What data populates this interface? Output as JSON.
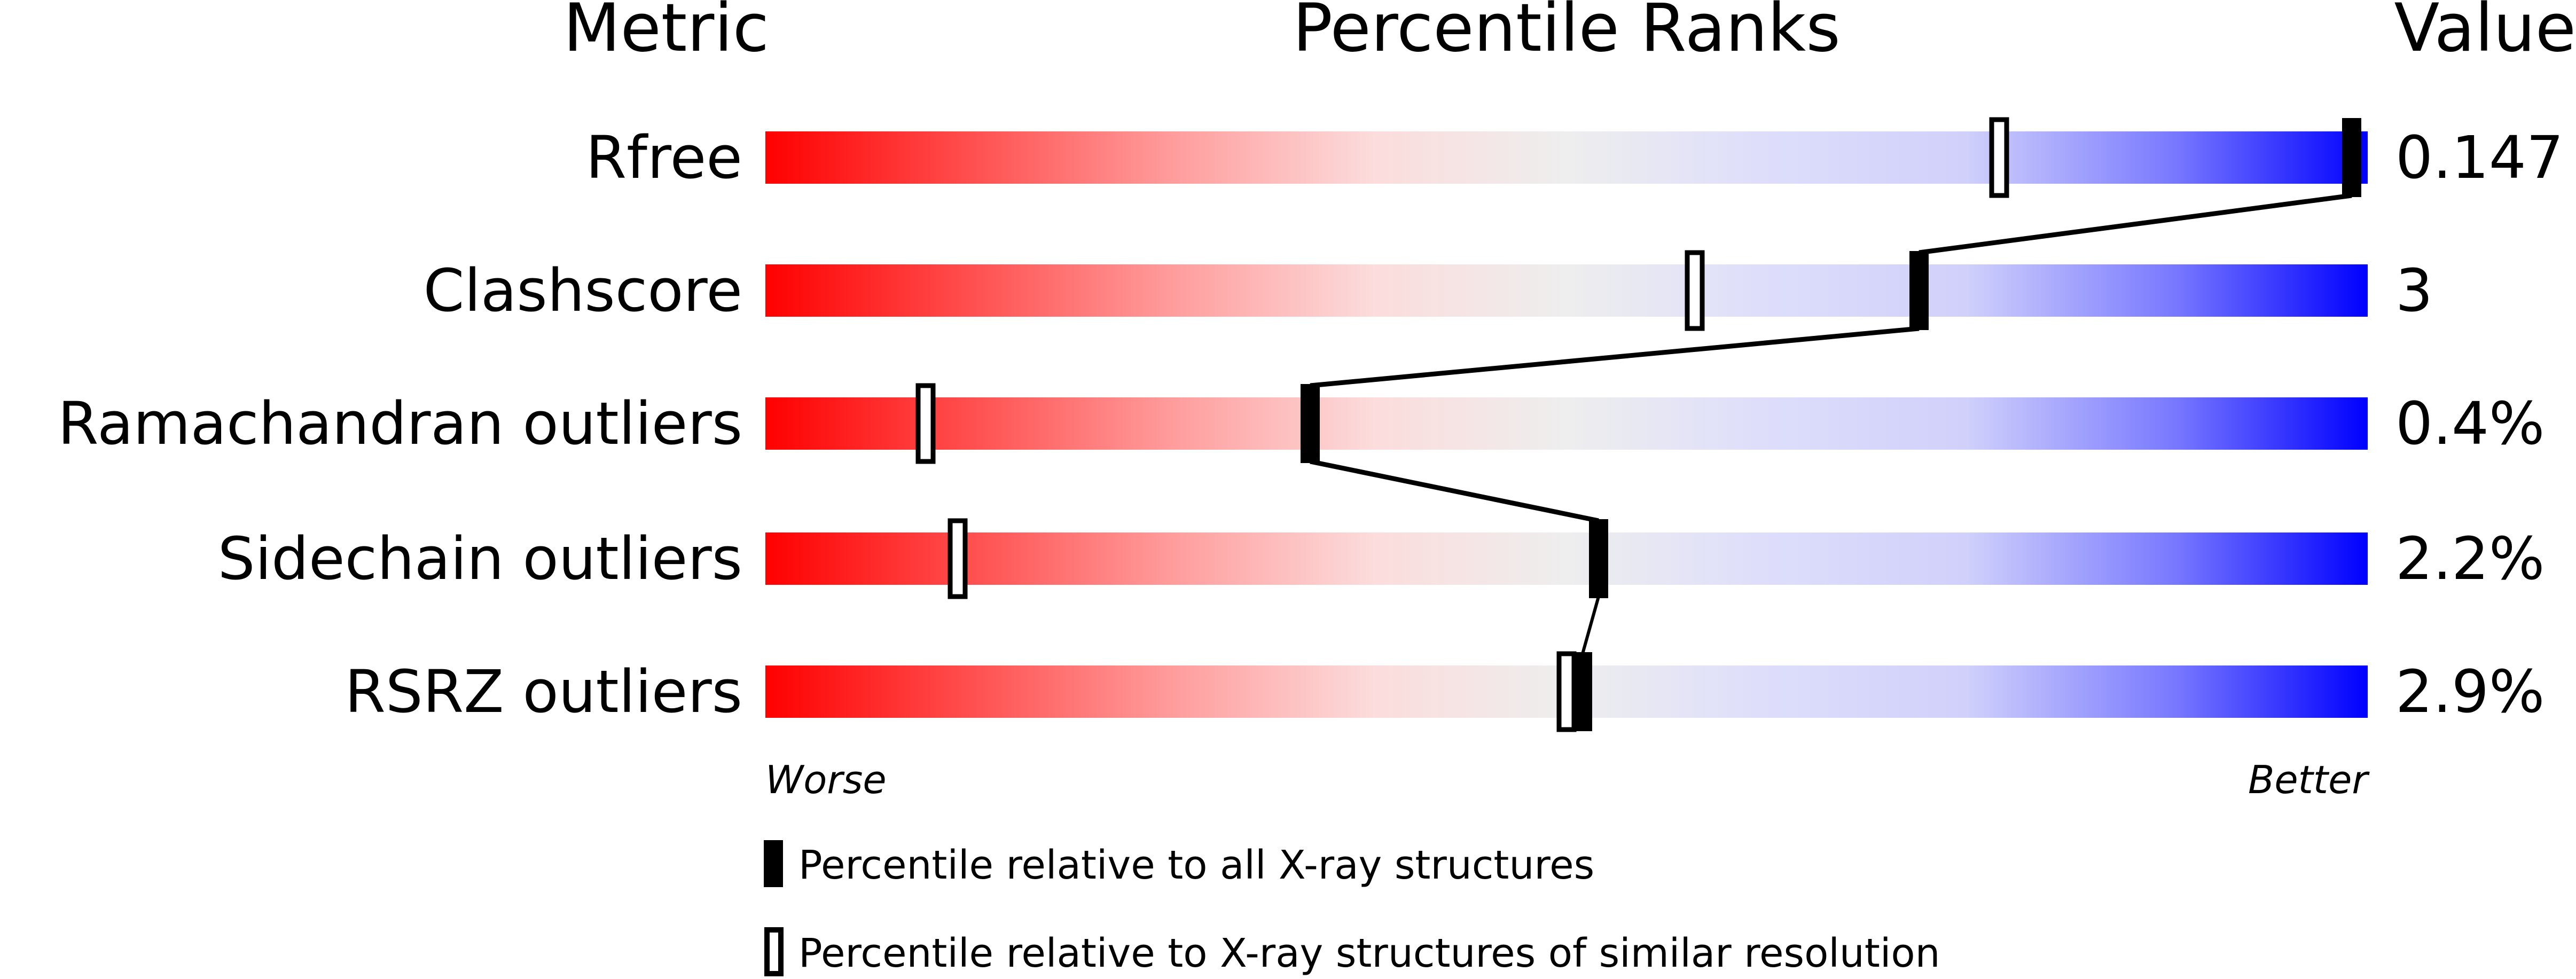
{
  "chart_data": {
    "type": "percentile-bar",
    "headers": {
      "metric": "Metric",
      "ranks": "Percentile Ranks",
      "value": "Value"
    },
    "xlim": [
      0,
      100
    ],
    "axis_labels": {
      "left": "Worse",
      "right": "Better"
    },
    "gradient_colors": [
      "#ff0000",
      "#eeeeee",
      "#0000ff"
    ],
    "metrics": [
      {
        "label": "Rfree",
        "value": "0.147",
        "percentile_all": 99,
        "percentile_similar": 77
      },
      {
        "label": "Clashscore",
        "value": "3",
        "percentile_all": 72,
        "percentile_similar": 58
      },
      {
        "label": "Ramachandran outliers",
        "value": "0.4%",
        "percentile_all": 34,
        "percentile_similar": 10
      },
      {
        "label": "Sidechain outliers",
        "value": "2.2%",
        "percentile_all": 52,
        "percentile_similar": 12
      },
      {
        "label": "RSRZ outliers",
        "value": "2.9%",
        "percentile_all": 51,
        "percentile_similar": 50
      }
    ],
    "legend": [
      {
        "marker": "filled",
        "label": "Percentile relative to all X-ray structures"
      },
      {
        "marker": "outline",
        "label": "Percentile relative to X-ray structures of similar resolution"
      }
    ]
  }
}
